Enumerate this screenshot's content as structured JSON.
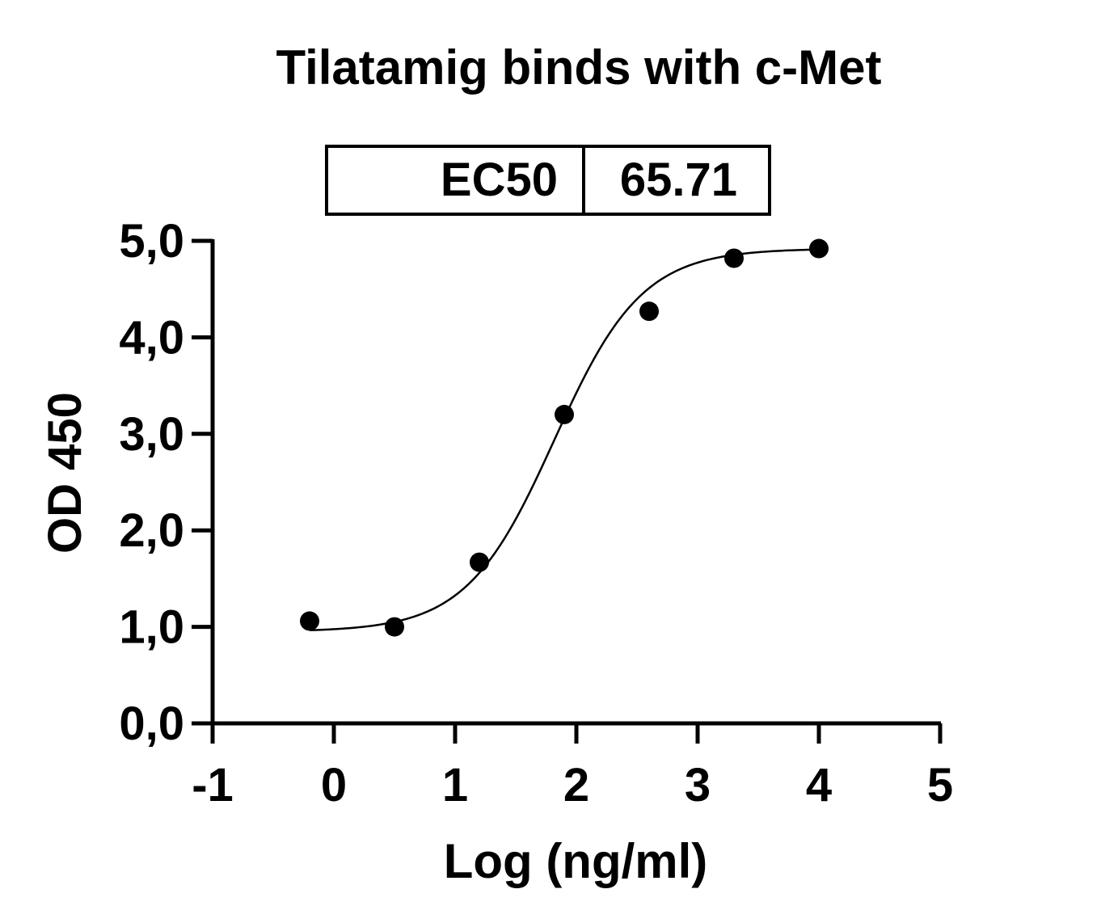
{
  "chart_data": {
    "type": "scatter",
    "title": "Tilatamig binds with c-Met",
    "xlabel": "Log (ng/ml)",
    "ylabel": "OD 450",
    "xlim": [
      -1,
      5
    ],
    "ylim": [
      0,
      5
    ],
    "x_ticks": [
      "-1",
      "0",
      "1",
      "2",
      "3",
      "4",
      "5"
    ],
    "y_ticks": [
      "0,0",
      "1,0",
      "2,0",
      "3,0",
      "4,0",
      "5,0"
    ],
    "grid": false,
    "legend": "none",
    "series": [
      {
        "points": [
          {
            "x": -0.2,
            "y": 1.06
          },
          {
            "x": 0.5,
            "y": 1.0
          },
          {
            "x": 1.2,
            "y": 1.67
          },
          {
            "x": 1.9,
            "y": 3.2
          },
          {
            "x": 2.6,
            "y": 4.27
          },
          {
            "x": 3.3,
            "y": 4.82
          },
          {
            "x": 4.0,
            "y": 4.92
          }
        ],
        "color": "#000000"
      }
    ],
    "fit_curve": {
      "model": "4PL",
      "bottom": 0.95,
      "top": 4.92,
      "log_ec50": 1.8176,
      "hill_slope": 1.2,
      "x_range": [
        -0.2,
        4.0
      ],
      "color": "#000000"
    },
    "annotation_table": {
      "label": "EC50",
      "value": "65.71"
    }
  }
}
